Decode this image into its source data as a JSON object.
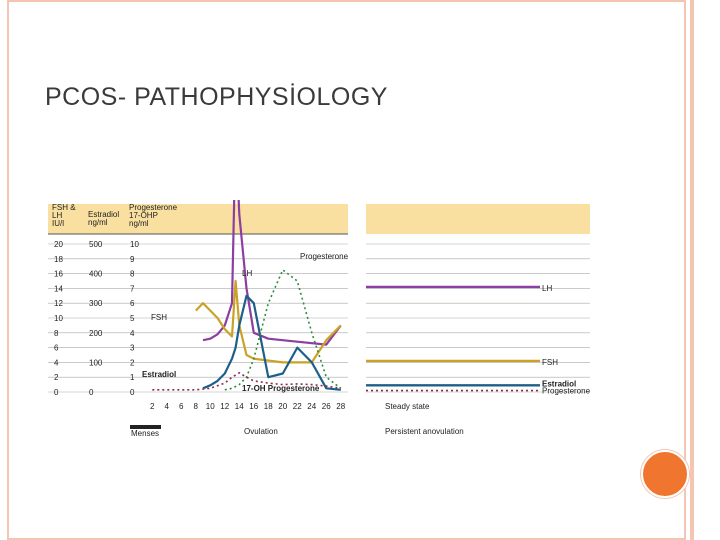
{
  "slide": {
    "title": "PCOS- PATHOPHYSİOLOGY"
  },
  "colors": {
    "header_band": "#f9e0a0",
    "lh": "#8b3fa0",
    "fsh": "#c9a227",
    "estradiol": "#1d5f8a",
    "progesterone": "#2e8b3a",
    "ohp": "#8b2a4a",
    "accent_dot": "#f0752e",
    "frame": "#f4c5b1"
  },
  "chart_data": [
    {
      "type": "line",
      "headers": {
        "col1": [
          "FSH &",
          "LH",
          "IU/l"
        ],
        "col2": [
          "Estradiol",
          "ng/ml"
        ],
        "col3": [
          "Progesterone",
          "17-OHP",
          "ng/ml"
        ]
      },
      "ytick_labels": {
        "fsh_lh": [
          "20",
          "18",
          "16",
          "14",
          "12",
          "10",
          "8",
          "6",
          "4",
          "2",
          "0"
        ],
        "estradiol": [
          "500",
          "",
          "400",
          "",
          "300",
          "",
          "200",
          "",
          "100",
          "",
          "0"
        ],
        "progesterone": [
          "10",
          "9",
          "8",
          "7",
          "6",
          "5",
          "4",
          "3",
          "2",
          "1",
          "0"
        ]
      },
      "x": [
        2,
        4,
        6,
        8,
        10,
        12,
        14,
        16,
        18,
        20,
        22,
        24,
        26,
        28
      ],
      "xtick_labels": [
        "2",
        "4",
        "6",
        "8",
        "10",
        "12",
        "14",
        "16",
        "18",
        "20",
        "22",
        "24",
        "26",
        "28"
      ],
      "ylim": [
        0,
        20
      ],
      "series": [
        {
          "name": "LH",
          "x": [
            9,
            10,
            11,
            12,
            13,
            13.5,
            14,
            15,
            16,
            18,
            22,
            26,
            28
          ],
          "y": [
            7,
            7.2,
            7.8,
            9,
            12,
            35,
            24,
            14,
            8,
            7.2,
            6.8,
            6.4,
            9
          ]
        },
        {
          "name": "FSH",
          "x": [
            8,
            9,
            10,
            11,
            12,
            13,
            13.5,
            14,
            15,
            16,
            20,
            24,
            26,
            28
          ],
          "y": [
            11,
            12,
            11,
            10,
            8.5,
            7.5,
            15,
            9,
            5,
            4.5,
            4,
            4,
            7,
            9
          ]
        },
        {
          "name": "Estradiol",
          "x": [
            9,
            10,
            11,
            12,
            13,
            13.5,
            14,
            15,
            16,
            18,
            20,
            22,
            24,
            26,
            28
          ],
          "y": [
            0.5,
            0.9,
            1.5,
            2.5,
            4.5,
            6,
            9,
            13,
            12,
            2,
            2.5,
            6,
            4,
            0.5,
            0.3
          ]
        },
        {
          "name": "Progesterone",
          "x": [
            12,
            13,
            14,
            15,
            16,
            18,
            20,
            22,
            24,
            26,
            28
          ],
          "y": [
            0.3,
            0.5,
            1,
            2,
            4.5,
            12,
            16.5,
            15,
            8,
            2,
            0.5
          ]
        },
        {
          "name": "17-OH Progesterone",
          "x": [
            2,
            4,
            6,
            8,
            10,
            12,
            13,
            14,
            15,
            16,
            18,
            20,
            22,
            24,
            26,
            28
          ],
          "y": [
            0.3,
            0.3,
            0.3,
            0.3,
            0.5,
            1.2,
            2,
            2.6,
            2,
            1.5,
            1.2,
            1,
            1.1,
            1,
            0.8,
            0.5
          ]
        }
      ],
      "labels": {
        "lh": "LH",
        "fsh": "FSH",
        "estradiol": "Estradiol",
        "progesterone": "Progesterone",
        "ohp": "17-OH Progesterone"
      },
      "annotations": {
        "menses": "Menses",
        "ovulation": "Ovulation"
      }
    },
    {
      "type": "line",
      "ylim": [
        0,
        20
      ],
      "series": [
        {
          "name": "LH",
          "y": 14.2
        },
        {
          "name": "FSH",
          "y": 4.2
        },
        {
          "name": "Estradiol",
          "y": 0.9
        },
        {
          "name": "Progesterone",
          "y": 0.2
        }
      ],
      "labels": {
        "lh": "LH",
        "fsh": "FSH",
        "estradiol": "Estradiol",
        "progesterone": "Progesterone"
      },
      "annotations": {
        "steady": "Steady state",
        "anovulation": "Persistent anovulation"
      }
    }
  ]
}
